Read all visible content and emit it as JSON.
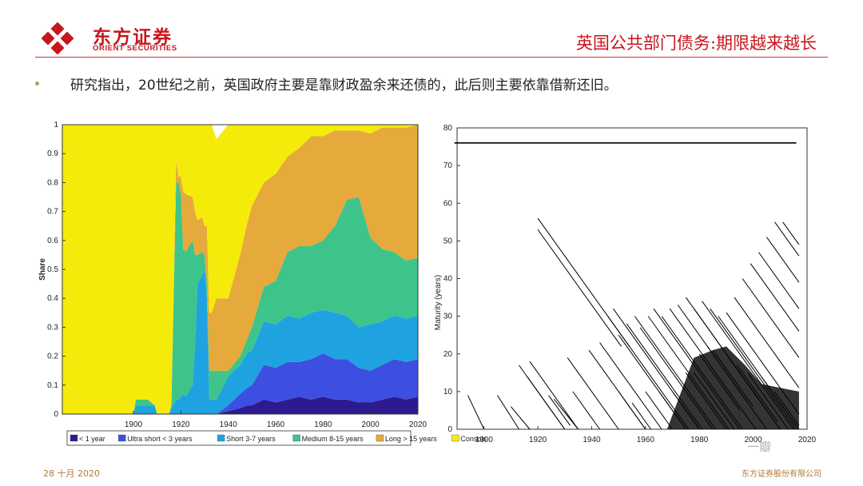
{
  "header": {
    "logo_cn": "东方证券",
    "logo_en": "ORIENT SECURITIES",
    "title": "英国公共部门债务:期限越来越长"
  },
  "bullet": "研究指出，20世纪之前，英国政府主要是靠财政盈余来还债的，此后则主要依靠借新还旧。",
  "footer": {
    "date": "28 十月 2020",
    "company": "东方证券股份有限公司"
  },
  "watermark": "一瓣",
  "colors": {
    "brand_red": "#c8161d",
    "bullet": "#8db05b"
  },
  "chart_data": [
    {
      "type": "area",
      "stacked": true,
      "ylabel": "Share",
      "xlabel": "",
      "xlim": [
        1870,
        2020
      ],
      "ylim": [
        0,
        1
      ],
      "xticks": [
        1900,
        1920,
        1940,
        1960,
        1980,
        2000,
        2020
      ],
      "yticks": [
        0,
        0.1,
        0.2,
        0.3,
        0.4,
        0.5,
        0.6,
        0.7,
        0.8,
        0.9,
        1
      ],
      "legend_position": "bottom",
      "x": [
        1870,
        1900,
        1901,
        1902,
        1903,
        1905,
        1906,
        1909,
        1910,
        1915,
        1916,
        1918,
        1919,
        1920,
        1921,
        1922,
        1925,
        1926,
        1927,
        1929,
        1930,
        1931,
        1932,
        1933,
        1935,
        1940,
        1945,
        1948,
        1950,
        1955,
        1960,
        1965,
        1970,
        1975,
        1980,
        1985,
        1990,
        1995,
        2000,
        2005,
        2010,
        2015,
        2020
      ],
      "series": [
        {
          "name": "< 1 year",
          "color": "#2c1a8f",
          "values": [
            0,
            0,
            0,
            0,
            0,
            0,
            0,
            0,
            0,
            0,
            0,
            0,
            0,
            0,
            0,
            0,
            0,
            0,
            0,
            0,
            0,
            0,
            0,
            0,
            0,
            0.01,
            0.02,
            0.03,
            0.03,
            0.05,
            0.04,
            0.05,
            0.06,
            0.05,
            0.06,
            0.05,
            0.05,
            0.04,
            0.04,
            0.05,
            0.06,
            0.05,
            0.06
          ]
        },
        {
          "name": "Ultra short < 3 years",
          "color": "#3d4fe0",
          "values": [
            0,
            0,
            0,
            0,
            0,
            0,
            0,
            0,
            0,
            0,
            0,
            0,
            0,
            0,
            0,
            0,
            0,
            0,
            0,
            0,
            0,
            0,
            0,
            0,
            0,
            0.02,
            0.05,
            0.06,
            0.07,
            0.12,
            0.12,
            0.13,
            0.12,
            0.14,
            0.15,
            0.14,
            0.14,
            0.12,
            0.11,
            0.12,
            0.13,
            0.13,
            0.13
          ]
        },
        {
          "name": "Short 3-7 years",
          "color": "#1fa3e0",
          "values": [
            0,
            0,
            0.03,
            0.03,
            0.03,
            0.03,
            0.03,
            0.03,
            0,
            0,
            0.02,
            0.05,
            0.05,
            0.06,
            0.07,
            0.06,
            0.1,
            0.25,
            0.45,
            0.48,
            0.5,
            0.4,
            0.05,
            0.05,
            0.05,
            0.1,
            0.1,
            0.12,
            0.12,
            0.15,
            0.15,
            0.16,
            0.15,
            0.16,
            0.15,
            0.16,
            0.15,
            0.14,
            0.16,
            0.15,
            0.15,
            0.15,
            0.15
          ]
        },
        {
          "name": "Medium 8-15 years",
          "color": "#3ec48a",
          "values": [
            0,
            0,
            0.02,
            0.02,
            0.02,
            0.02,
            0.02,
            0,
            0,
            0,
            0.01,
            0.75,
            0.75,
            0.7,
            0.5,
            0.5,
            0.5,
            0.3,
            0.1,
            0.08,
            0.05,
            0.05,
            0.1,
            0.1,
            0.1,
            0.02,
            0.03,
            0.05,
            0.08,
            0.12,
            0.15,
            0.22,
            0.25,
            0.23,
            0.24,
            0.3,
            0.4,
            0.45,
            0.3,
            0.25,
            0.22,
            0.2,
            0.2
          ]
        },
        {
          "name": "Long > 15 years",
          "color": "#e6a93c",
          "values": [
            0,
            0,
            0,
            0,
            0,
            0,
            0,
            0,
            0,
            0,
            0,
            0.08,
            0.02,
            0.06,
            0.2,
            0.2,
            0.15,
            0.15,
            0.12,
            0.12,
            0.1,
            0.2,
            0.2,
            0.2,
            0.25,
            0.25,
            0.35,
            0.4,
            0.42,
            0.36,
            0.37,
            0.33,
            0.34,
            0.38,
            0.36,
            0.33,
            0.24,
            0.23,
            0.36,
            0.42,
            0.43,
            0.46,
            0.46
          ]
        },
        {
          "name": "Consols",
          "color": "#f5eb0a",
          "values": [
            1,
            1,
            0.95,
            0.95,
            0.95,
            0.95,
            0.95,
            0.97,
            1,
            1,
            0.97,
            0.12,
            0.18,
            0.18,
            0.23,
            0.24,
            0.25,
            0.3,
            0.33,
            0.32,
            0.35,
            0.35,
            0.65,
            0.65,
            0.55,
            0.6,
            0.45,
            0.34,
            0.28,
            0.2,
            0.17,
            0.11,
            0.08,
            0.04,
            0.04,
            0.02,
            0.02,
            0.02,
            0.03,
            0.01,
            0.01,
            0.01,
            0
          ]
        }
      ]
    },
    {
      "type": "line",
      "ylabel": "Maturity (years)",
      "xlabel": "",
      "xlim": [
        1890,
        2020
      ],
      "ylim": [
        0,
        80
      ],
      "xticks": [
        1900,
        1920,
        1940,
        1960,
        1980,
        2000,
        2020
      ],
      "yticks": [
        0,
        10,
        20,
        30,
        40,
        50,
        60,
        70,
        80
      ],
      "series": [
        {
          "name": "",
          "x": [
            1889,
            2016
          ],
          "y": [
            76,
            76
          ]
        },
        {
          "name": "",
          "x": [
            1894,
            1900
          ],
          "y": [
            9,
            0
          ]
        },
        {
          "name": "",
          "x": [
            1905,
            1913
          ],
          "y": [
            9,
            0
          ]
        },
        {
          "name": "",
          "x": [
            1910,
            1917
          ],
          "y": [
            6,
            0
          ]
        },
        {
          "name": "",
          "x": [
            1913,
            1930
          ],
          "y": [
            17,
            0
          ]
        },
        {
          "name": "",
          "x": [
            1916,
            1930
          ],
          "y": [
            14,
            0
          ]
        },
        {
          "name": "",
          "x": [
            1917,
            1935
          ],
          "y": [
            18,
            0
          ]
        },
        {
          "name": "",
          "x": [
            1920,
            1954
          ],
          "y": [
            56,
            22
          ]
        },
        {
          "name": "",
          "x": [
            1920,
            1951
          ],
          "y": [
            53,
            22
          ]
        },
        {
          "name": "",
          "x": [
            1924,
            1932
          ],
          "y": [
            9,
            1
          ]
        },
        {
          "name": "",
          "x": [
            1926,
            1935
          ],
          "y": [
            8,
            0
          ]
        },
        {
          "name": "",
          "x": [
            1931,
            1950
          ],
          "y": [
            19,
            0
          ]
        },
        {
          "name": "",
          "x": [
            1933,
            1943
          ],
          "y": [
            10,
            0
          ]
        },
        {
          "name": "",
          "x": [
            1939,
            1960
          ],
          "y": [
            21,
            0
          ]
        },
        {
          "name": "",
          "x": [
            1943,
            1966
          ],
          "y": [
            23,
            0
          ]
        },
        {
          "name": "",
          "x": [
            1946,
            1976
          ],
          "y": [
            30,
            0
          ]
        },
        {
          "name": "",
          "x": [
            1948,
            1980
          ],
          "y": [
            32,
            0
          ]
        },
        {
          "name": "",
          "x": [
            1950,
            1975
          ],
          "y": [
            25,
            0
          ]
        },
        {
          "name": "",
          "x": [
            1953,
            1981
          ],
          "y": [
            28,
            0
          ]
        },
        {
          "name": "",
          "x": [
            1956,
            1986
          ],
          "y": [
            30,
            0
          ]
        },
        {
          "name": "",
          "x": [
            1958,
            1985
          ],
          "y": [
            27,
            0
          ]
        },
        {
          "name": "",
          "x": [
            1961,
            1991
          ],
          "y": [
            30,
            0
          ]
        },
        {
          "name": "",
          "x": [
            1963,
            1995
          ],
          "y": [
            32,
            0
          ]
        },
        {
          "name": "",
          "x": [
            1966,
            1996
          ],
          "y": [
            30,
            0
          ]
        },
        {
          "name": "",
          "x": [
            1969,
            2001
          ],
          "y": [
            32,
            0
          ]
        },
        {
          "name": "",
          "x": [
            1972,
            2005
          ],
          "y": [
            33,
            0
          ]
        },
        {
          "name": "",
          "x": [
            1975,
            2010
          ],
          "y": [
            35,
            0
          ]
        },
        {
          "name": "",
          "x": [
            1978,
            2010
          ],
          "y": [
            32,
            0
          ]
        },
        {
          "name": "",
          "x": [
            1981,
            2015
          ],
          "y": [
            34,
            0
          ]
        },
        {
          "name": "",
          "x": [
            1984,
            2016
          ],
          "y": [
            32,
            0
          ]
        },
        {
          "name": "",
          "x": [
            1987,
            2016
          ],
          "y": [
            30,
            1
          ]
        },
        {
          "name": "",
          "x": [
            1990,
            2017
          ],
          "y": [
            31,
            4
          ]
        },
        {
          "name": "",
          "x": [
            1993,
            2017
          ],
          "y": [
            35,
            11
          ]
        },
        {
          "name": "",
          "x": [
            1996,
            2017
          ],
          "y": [
            40,
            19
          ]
        },
        {
          "name": "",
          "x": [
            1999,
            2017
          ],
          "y": [
            44,
            26
          ]
        },
        {
          "name": "",
          "x": [
            2002,
            2017
          ],
          "y": [
            47,
            32
          ]
        },
        {
          "name": "",
          "x": [
            2005,
            2017
          ],
          "y": [
            51,
            39
          ]
        },
        {
          "name": "",
          "x": [
            2008,
            2017
          ],
          "y": [
            55,
            46
          ]
        },
        {
          "name": "",
          "x": [
            2011,
            2017
          ],
          "y": [
            55,
            49
          ]
        },
        {
          "name": "",
          "x": [
            1950,
            1960
          ],
          "y": [
            10,
            0
          ]
        },
        {
          "name": "",
          "x": [
            1955,
            1962
          ],
          "y": [
            7,
            0
          ]
        },
        {
          "name": "",
          "x": [
            1960,
            1970
          ],
          "y": [
            10,
            0
          ]
        },
        {
          "name": "",
          "x": [
            1965,
            1975
          ],
          "y": [
            10,
            0
          ]
        },
        {
          "name": "",
          "x": [
            1970,
            1980
          ],
          "y": [
            10,
            0
          ]
        },
        {
          "name": "",
          "x": [
            1975,
            1990
          ],
          "y": [
            15,
            0
          ]
        },
        {
          "name": "",
          "x": [
            1978,
            1993
          ],
          "y": [
            15,
            0
          ]
        },
        {
          "name": "",
          "x": [
            1980,
            1995
          ],
          "y": [
            20,
            5
          ]
        },
        {
          "name": "",
          "x": [
            1983,
            1998
          ],
          "y": [
            22,
            7
          ]
        },
        {
          "name": "",
          "x": [
            1985,
            2000
          ],
          "y": [
            21,
            6
          ]
        },
        {
          "name": "",
          "x": [
            1988,
            2003
          ],
          "y": [
            22,
            7
          ]
        },
        {
          "name": "",
          "x": [
            1990,
            2005
          ],
          "y": [
            20,
            5
          ]
        },
        {
          "name": "",
          "x": [
            1994,
            2009
          ],
          "y": [
            17,
            2
          ]
        },
        {
          "name": "",
          "x": [
            1998,
            2013
          ],
          "y": [
            15,
            0
          ]
        },
        {
          "name": "",
          "x": [
            2003,
            2017
          ],
          "y": [
            14,
            0
          ]
        },
        {
          "name": "",
          "x": [
            2008,
            2017
          ],
          "y": [
            10,
            1
          ]
        }
      ]
    }
  ]
}
